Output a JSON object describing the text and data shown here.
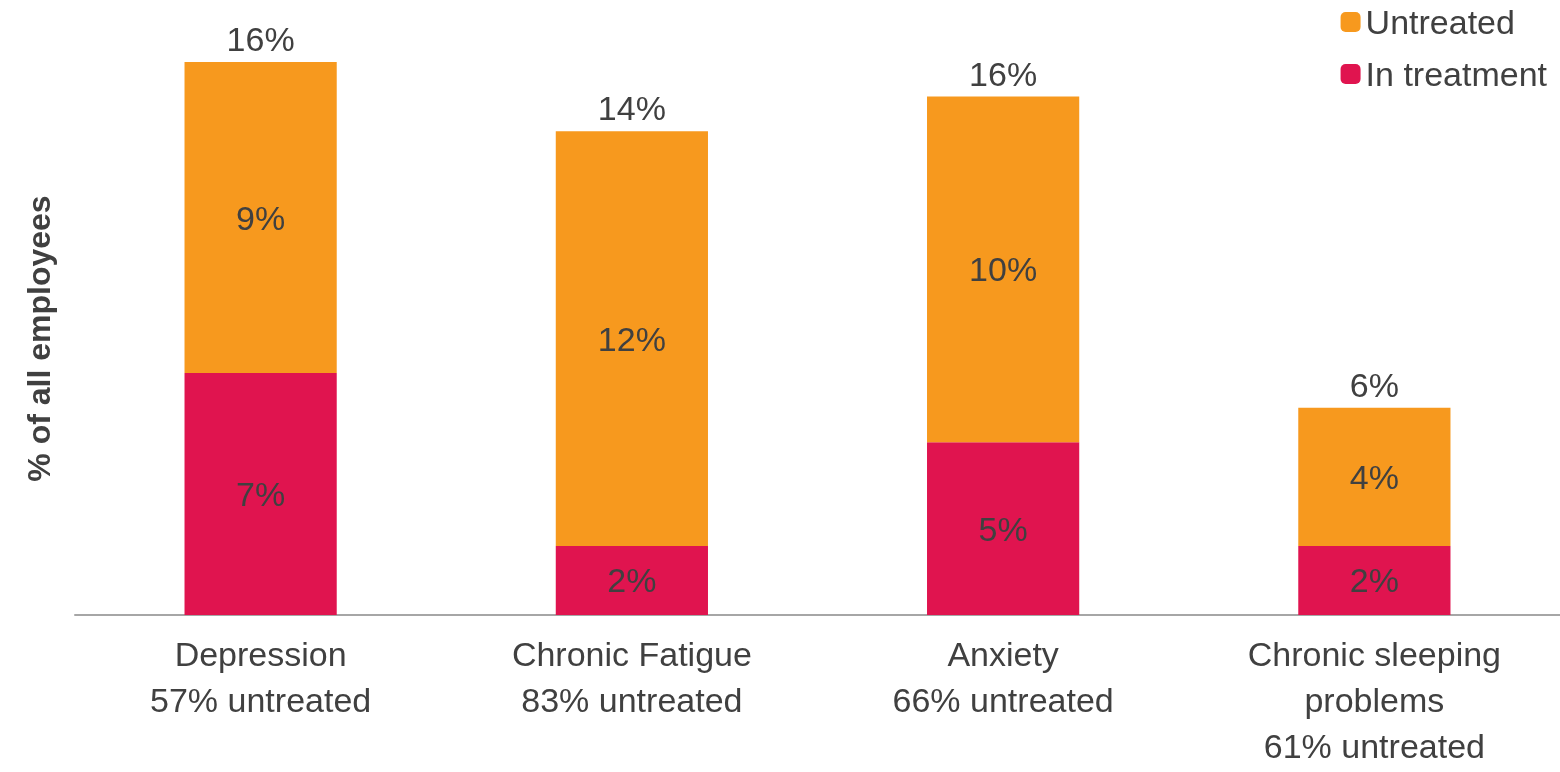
{
  "chart_data": {
    "type": "bar",
    "stacked": true,
    "ylabel": "% of all employees",
    "categories": [
      "Depression\n57% untreated",
      "Chronic Fatigue\n83% untreated",
      "Anxiety\n66% untreated",
      "Chronic sleeping\nproblems\n61% untreated"
    ],
    "series": [
      {
        "name": "In treatment",
        "color": "#e0144f",
        "values": [
          7,
          2,
          5,
          2
        ],
        "value_labels": [
          "7%",
          "2%",
          "5%",
          "2%"
        ]
      },
      {
        "name": "Untreated",
        "color": "#f7991e",
        "values": [
          9,
          12,
          10,
          4
        ],
        "value_labels": [
          "9%",
          "12%",
          "10%",
          "4%"
        ]
      }
    ],
    "totals": [
      "16%",
      "14%",
      "16%",
      "6%"
    ],
    "legend": "top right",
    "tick_labels": "x",
    "grid": false
  }
}
